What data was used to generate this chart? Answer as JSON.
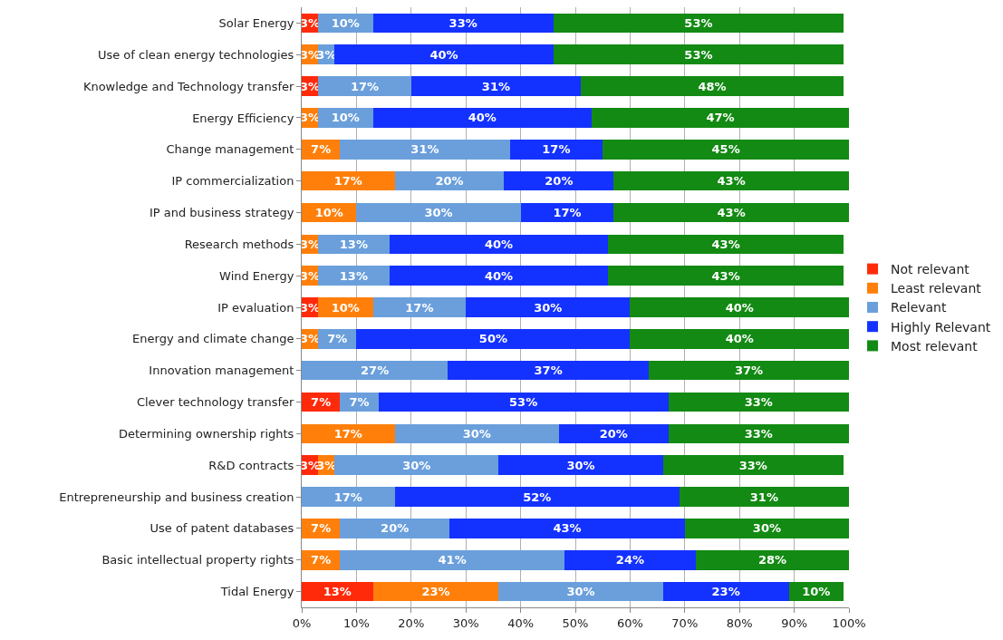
{
  "chart_data": {
    "type": "bar",
    "orientation": "horizontal",
    "stacked": true,
    "categories": [
      "Solar Energy",
      "Use of clean energy technologies",
      "Knowledge and Technology transfer",
      "Energy Efficiency",
      "Change management",
      "IP commercialization",
      "IP and business strategy",
      "Research methods",
      "Wind Energy",
      "IP evaluation",
      "Energy and climate change",
      "Innovation management",
      "Clever technology transfer",
      "Determining ownership rights",
      "R&D contracts",
      "Entrepreneurship and business creation",
      "Use of patent databases",
      "Basic intellectual property rights",
      "Tidal Energy"
    ],
    "series": [
      {
        "name": "Not relevant",
        "color": "#ff2a0a",
        "values": [
          3,
          null,
          3,
          null,
          null,
          null,
          null,
          null,
          null,
          3,
          null,
          null,
          7,
          null,
          3,
          null,
          null,
          null,
          13
        ],
        "value_labels": [
          "3%",
          null,
          "3%",
          null,
          null,
          null,
          null,
          null,
          null,
          "3%",
          null,
          null,
          "7%",
          null,
          "3%",
          null,
          null,
          null,
          "13%"
        ]
      },
      {
        "name": "Least relevant",
        "color": "#ff7f0a",
        "values": [
          null,
          3,
          null,
          3,
          7,
          17,
          10,
          3,
          3,
          10,
          3,
          null,
          null,
          17,
          3,
          null,
          7,
          7,
          23
        ],
        "value_labels": [
          null,
          "3%",
          null,
          "3%",
          "7%",
          "17%",
          "10%",
          "3%",
          "3%",
          "10%",
          "3%",
          null,
          null,
          "17%",
          "3%",
          null,
          "7%",
          "7%",
          "23%"
        ]
      },
      {
        "name": "Relevant",
        "color": "#6a9fdc",
        "values": [
          10,
          3,
          17,
          10,
          31,
          20,
          30,
          13,
          13,
          17,
          7,
          26.7,
          7,
          30,
          30,
          17,
          20,
          41,
          30
        ],
        "value_labels": [
          "10%",
          "3%",
          "17%",
          "10%",
          "31%",
          "20%",
          "30%",
          "13%",
          "13%",
          "17%",
          "7%",
          "27%",
          "7%",
          "30%",
          "30%",
          "17%",
          "20%",
          "41%",
          "30%"
        ]
      },
      {
        "name": "Highly Relevant",
        "color": "#1432ff",
        "values": [
          33,
          40,
          31,
          40,
          17,
          20,
          17,
          40,
          40,
          30,
          50,
          36.7,
          53,
          20,
          30,
          52,
          43,
          24,
          23
        ],
        "value_labels": [
          "33%",
          "40%",
          "31%",
          "40%",
          "17%",
          "20%",
          "17%",
          "40%",
          "40%",
          "30%",
          "50%",
          "37%",
          "53%",
          "20%",
          "30%",
          "52%",
          "43%",
          "24%",
          "23%"
        ]
      },
      {
        "name": "Most relevant",
        "color": "#138a13",
        "values": [
          53,
          53,
          48,
          47,
          45,
          43,
          43,
          43,
          43,
          40,
          40,
          36.6,
          33,
          33,
          33,
          31,
          30,
          28,
          10
        ],
        "value_labels": [
          "53%",
          "53%",
          "48%",
          "47%",
          "45%",
          "43%",
          "43%",
          "43%",
          "43%",
          "40%",
          "40%",
          "37%",
          "33%",
          "33%",
          "33%",
          "31%",
          "30%",
          "28%",
          "10%"
        ]
      }
    ],
    "xlim": [
      0,
      100
    ],
    "xticks": [
      {
        "value": 0,
        "label": "0%"
      },
      {
        "value": 10,
        "label": "10%"
      },
      {
        "value": 20,
        "label": "20%"
      },
      {
        "value": 30,
        "label": "30%"
      },
      {
        "value": 40,
        "label": "40%"
      },
      {
        "value": 50,
        "label": "50%"
      },
      {
        "value": 60,
        "label": "60%"
      },
      {
        "value": 70,
        "label": "70%"
      },
      {
        "value": 80,
        "label": "80%"
      },
      {
        "value": 90,
        "label": "90%"
      },
      {
        "value": 100,
        "label": "100%"
      }
    ],
    "grid": "x",
    "legend": "right"
  }
}
